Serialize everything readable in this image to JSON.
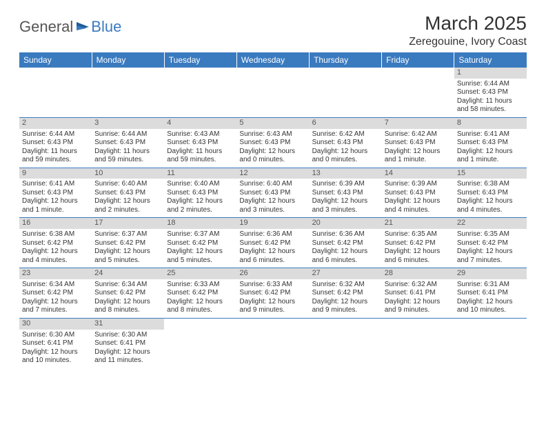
{
  "logo": {
    "part1": "General",
    "part2": "Blue"
  },
  "title": "March 2025",
  "location": "Zeregouine, Ivory Coast",
  "colors": {
    "header_bg": "#3a7abf",
    "header_text": "#ffffff",
    "daynum_bg": "#dcdcdc",
    "cell_border": "#3a7abf",
    "body_text": "#333333"
  },
  "weekdays": [
    "Sunday",
    "Monday",
    "Tuesday",
    "Wednesday",
    "Thursday",
    "Friday",
    "Saturday"
  ],
  "weeks": [
    [
      null,
      null,
      null,
      null,
      null,
      null,
      {
        "n": "1",
        "sr": "Sunrise: 6:44 AM",
        "ss": "Sunset: 6:43 PM",
        "dl": "Daylight: 11 hours and 58 minutes."
      }
    ],
    [
      {
        "n": "2",
        "sr": "Sunrise: 6:44 AM",
        "ss": "Sunset: 6:43 PM",
        "dl": "Daylight: 11 hours and 59 minutes."
      },
      {
        "n": "3",
        "sr": "Sunrise: 6:44 AM",
        "ss": "Sunset: 6:43 PM",
        "dl": "Daylight: 11 hours and 59 minutes."
      },
      {
        "n": "4",
        "sr": "Sunrise: 6:43 AM",
        "ss": "Sunset: 6:43 PM",
        "dl": "Daylight: 11 hours and 59 minutes."
      },
      {
        "n": "5",
        "sr": "Sunrise: 6:43 AM",
        "ss": "Sunset: 6:43 PM",
        "dl": "Daylight: 12 hours and 0 minutes."
      },
      {
        "n": "6",
        "sr": "Sunrise: 6:42 AM",
        "ss": "Sunset: 6:43 PM",
        "dl": "Daylight: 12 hours and 0 minutes."
      },
      {
        "n": "7",
        "sr": "Sunrise: 6:42 AM",
        "ss": "Sunset: 6:43 PM",
        "dl": "Daylight: 12 hours and 1 minute."
      },
      {
        "n": "8",
        "sr": "Sunrise: 6:41 AM",
        "ss": "Sunset: 6:43 PM",
        "dl": "Daylight: 12 hours and 1 minute."
      }
    ],
    [
      {
        "n": "9",
        "sr": "Sunrise: 6:41 AM",
        "ss": "Sunset: 6:43 PM",
        "dl": "Daylight: 12 hours and 1 minute."
      },
      {
        "n": "10",
        "sr": "Sunrise: 6:40 AM",
        "ss": "Sunset: 6:43 PM",
        "dl": "Daylight: 12 hours and 2 minutes."
      },
      {
        "n": "11",
        "sr": "Sunrise: 6:40 AM",
        "ss": "Sunset: 6:43 PM",
        "dl": "Daylight: 12 hours and 2 minutes."
      },
      {
        "n": "12",
        "sr": "Sunrise: 6:40 AM",
        "ss": "Sunset: 6:43 PM",
        "dl": "Daylight: 12 hours and 3 minutes."
      },
      {
        "n": "13",
        "sr": "Sunrise: 6:39 AM",
        "ss": "Sunset: 6:43 PM",
        "dl": "Daylight: 12 hours and 3 minutes."
      },
      {
        "n": "14",
        "sr": "Sunrise: 6:39 AM",
        "ss": "Sunset: 6:43 PM",
        "dl": "Daylight: 12 hours and 4 minutes."
      },
      {
        "n": "15",
        "sr": "Sunrise: 6:38 AM",
        "ss": "Sunset: 6:43 PM",
        "dl": "Daylight: 12 hours and 4 minutes."
      }
    ],
    [
      {
        "n": "16",
        "sr": "Sunrise: 6:38 AM",
        "ss": "Sunset: 6:42 PM",
        "dl": "Daylight: 12 hours and 4 minutes."
      },
      {
        "n": "17",
        "sr": "Sunrise: 6:37 AM",
        "ss": "Sunset: 6:42 PM",
        "dl": "Daylight: 12 hours and 5 minutes."
      },
      {
        "n": "18",
        "sr": "Sunrise: 6:37 AM",
        "ss": "Sunset: 6:42 PM",
        "dl": "Daylight: 12 hours and 5 minutes."
      },
      {
        "n": "19",
        "sr": "Sunrise: 6:36 AM",
        "ss": "Sunset: 6:42 PM",
        "dl": "Daylight: 12 hours and 6 minutes."
      },
      {
        "n": "20",
        "sr": "Sunrise: 6:36 AM",
        "ss": "Sunset: 6:42 PM",
        "dl": "Daylight: 12 hours and 6 minutes."
      },
      {
        "n": "21",
        "sr": "Sunrise: 6:35 AM",
        "ss": "Sunset: 6:42 PM",
        "dl": "Daylight: 12 hours and 6 minutes."
      },
      {
        "n": "22",
        "sr": "Sunrise: 6:35 AM",
        "ss": "Sunset: 6:42 PM",
        "dl": "Daylight: 12 hours and 7 minutes."
      }
    ],
    [
      {
        "n": "23",
        "sr": "Sunrise: 6:34 AM",
        "ss": "Sunset: 6:42 PM",
        "dl": "Daylight: 12 hours and 7 minutes."
      },
      {
        "n": "24",
        "sr": "Sunrise: 6:34 AM",
        "ss": "Sunset: 6:42 PM",
        "dl": "Daylight: 12 hours and 8 minutes."
      },
      {
        "n": "25",
        "sr": "Sunrise: 6:33 AM",
        "ss": "Sunset: 6:42 PM",
        "dl": "Daylight: 12 hours and 8 minutes."
      },
      {
        "n": "26",
        "sr": "Sunrise: 6:33 AM",
        "ss": "Sunset: 6:42 PM",
        "dl": "Daylight: 12 hours and 9 minutes."
      },
      {
        "n": "27",
        "sr": "Sunrise: 6:32 AM",
        "ss": "Sunset: 6:42 PM",
        "dl": "Daylight: 12 hours and 9 minutes."
      },
      {
        "n": "28",
        "sr": "Sunrise: 6:32 AM",
        "ss": "Sunset: 6:41 PM",
        "dl": "Daylight: 12 hours and 9 minutes."
      },
      {
        "n": "29",
        "sr": "Sunrise: 6:31 AM",
        "ss": "Sunset: 6:41 PM",
        "dl": "Daylight: 12 hours and 10 minutes."
      }
    ],
    [
      {
        "n": "30",
        "sr": "Sunrise: 6:30 AM",
        "ss": "Sunset: 6:41 PM",
        "dl": "Daylight: 12 hours and 10 minutes."
      },
      {
        "n": "31",
        "sr": "Sunrise: 6:30 AM",
        "ss": "Sunset: 6:41 PM",
        "dl": "Daylight: 12 hours and 11 minutes."
      },
      null,
      null,
      null,
      null,
      null
    ]
  ]
}
